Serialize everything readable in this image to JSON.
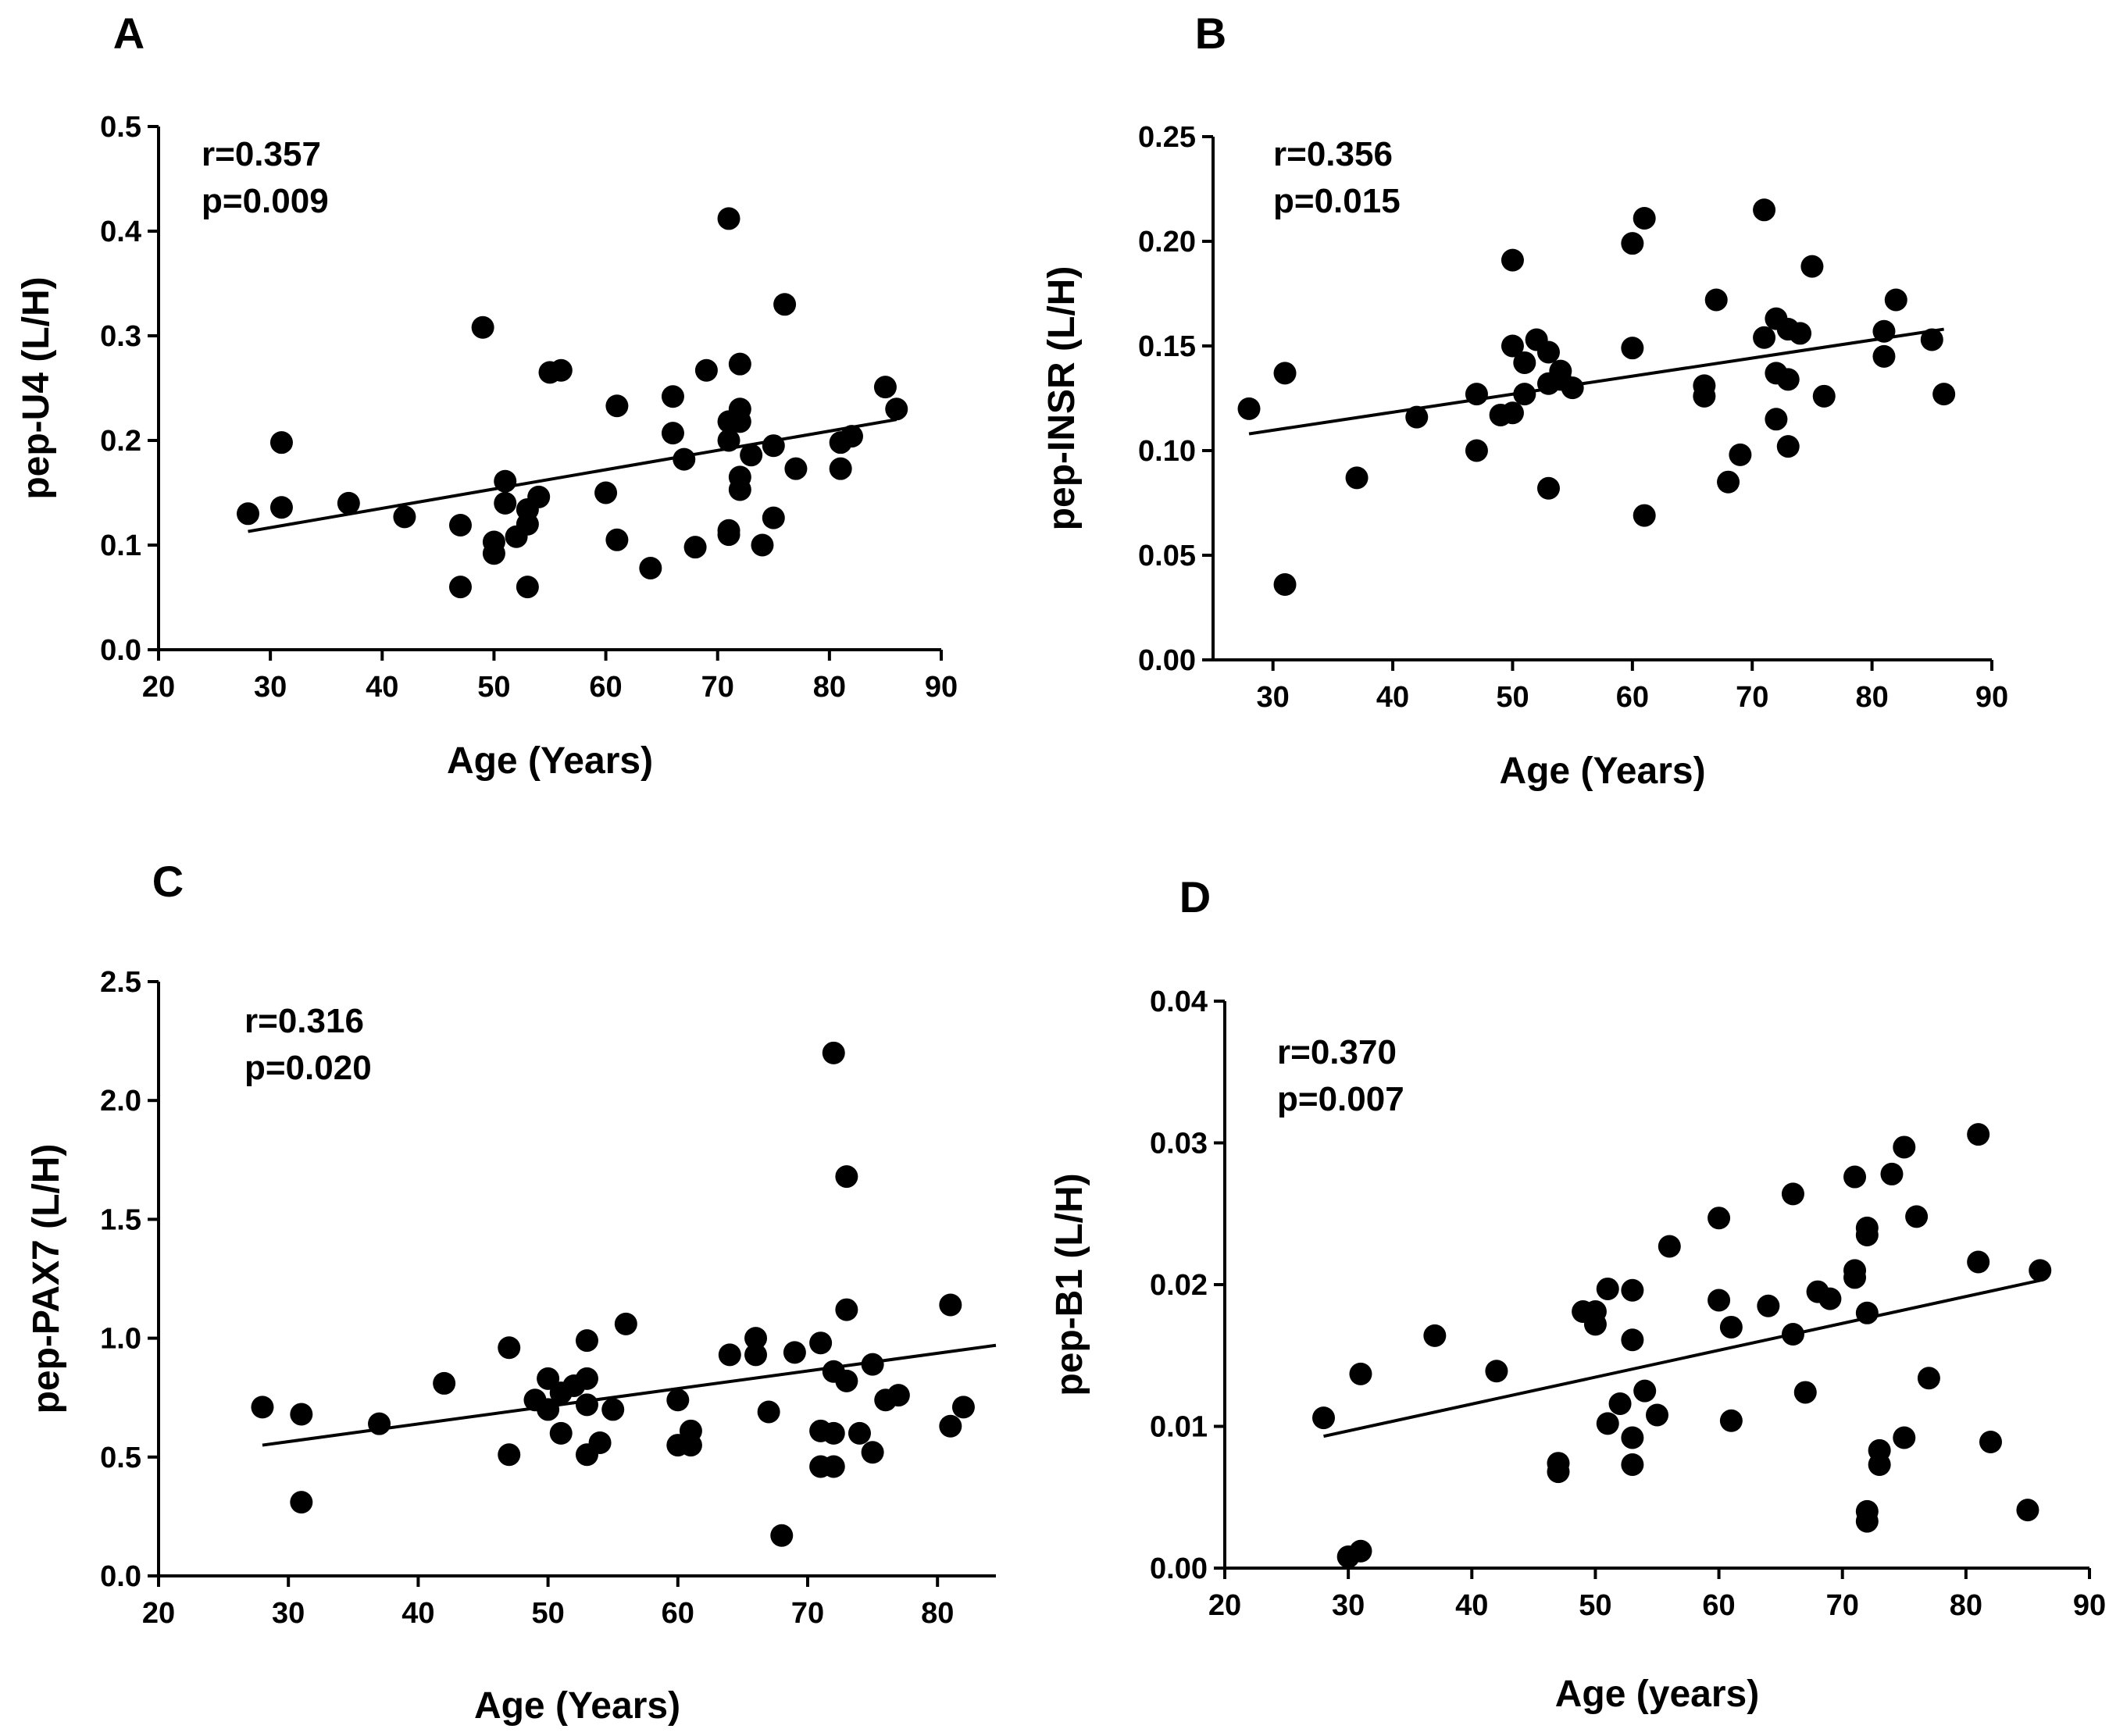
{
  "chart_data": [
    {
      "panel": "A",
      "type": "scatter",
      "r_label": "r=0.357",
      "p_label": "p=0.009",
      "xlabel": "Age (Years)",
      "ylabel": "pep-U4 (L/H)",
      "xlim": [
        20,
        90
      ],
      "ylim": [
        0.0,
        0.5
      ],
      "xticks": [
        20,
        30,
        40,
        50,
        60,
        70,
        80,
        90
      ],
      "yticks": [
        0.0,
        0.1,
        0.2,
        0.3,
        0.4,
        0.5
      ],
      "ytick_labels": [
        "0.0",
        "0.1",
        "0.2",
        "0.3",
        "0.4",
        "0.5"
      ],
      "fit_line": [
        [
          28,
          0.113
        ],
        [
          86,
          0.22
        ]
      ],
      "points": [
        [
          28,
          0.13
        ],
        [
          31,
          0.136
        ],
        [
          31,
          0.198
        ],
        [
          37,
          0.14
        ],
        [
          42,
          0.127
        ],
        [
          47,
          0.06
        ],
        [
          47,
          0.119
        ],
        [
          49,
          0.308
        ],
        [
          50,
          0.092
        ],
        [
          50,
          0.103
        ],
        [
          51,
          0.14
        ],
        [
          51,
          0.161
        ],
        [
          52,
          0.108
        ],
        [
          53,
          0.06
        ],
        [
          53,
          0.12
        ],
        [
          53,
          0.134
        ],
        [
          54,
          0.146
        ],
        [
          55,
          0.265
        ],
        [
          56,
          0.267
        ],
        [
          60,
          0.15
        ],
        [
          61,
          0.233
        ],
        [
          61,
          0.105
        ],
        [
          64,
          0.078
        ],
        [
          66,
          0.242
        ],
        [
          66,
          0.207
        ],
        [
          67,
          0.182
        ],
        [
          68,
          0.098
        ],
        [
          69,
          0.267
        ],
        [
          71,
          0.412
        ],
        [
          71,
          0.2
        ],
        [
          71,
          0.218
        ],
        [
          71,
          0.114
        ],
        [
          71,
          0.11
        ],
        [
          72,
          0.273
        ],
        [
          72,
          0.23
        ],
        [
          72,
          0.218
        ],
        [
          72,
          0.165
        ],
        [
          72,
          0.153
        ],
        [
          73,
          0.186
        ],
        [
          74,
          0.1
        ],
        [
          75,
          0.126
        ],
        [
          75,
          0.195
        ],
        [
          76,
          0.33
        ],
        [
          77,
          0.173
        ],
        [
          81,
          0.198
        ],
        [
          81,
          0.173
        ],
        [
          82,
          0.204
        ],
        [
          85,
          0.251
        ],
        [
          86,
          0.23
        ]
      ]
    },
    {
      "panel": "B",
      "type": "scatter",
      "r_label": "r=0.356",
      "p_label": "p=0.015",
      "xlabel": "Age (Years)",
      "ylabel": "pep-INSR (L/H)",
      "xlim": [
        25,
        90
      ],
      "ylim": [
        0.0,
        0.25
      ],
      "xticks": [
        30,
        40,
        50,
        60,
        70,
        80,
        90
      ],
      "yticks": [
        0.0,
        0.05,
        0.1,
        0.15,
        0.2,
        0.25
      ],
      "ytick_labels": [
        "0.00",
        "0.05",
        "0.10",
        "0.15",
        "0.20",
        "0.25"
      ],
      "fit_line": [
        [
          28,
          0.108
        ],
        [
          86,
          0.158
        ]
      ],
      "points": [
        [
          28,
          0.12
        ],
        [
          31,
          0.137
        ],
        [
          31,
          0.036
        ],
        [
          37,
          0.087
        ],
        [
          42,
          0.116
        ],
        [
          47,
          0.127
        ],
        [
          47,
          0.1
        ],
        [
          49,
          0.117
        ],
        [
          50,
          0.191
        ],
        [
          50,
          0.15
        ],
        [
          50,
          0.118
        ],
        [
          51,
          0.127
        ],
        [
          51,
          0.142
        ],
        [
          52,
          0.153
        ],
        [
          53,
          0.147
        ],
        [
          53,
          0.132
        ],
        [
          53,
          0.082
        ],
        [
          54,
          0.138
        ],
        [
          54,
          0.134
        ],
        [
          55,
          0.13
        ],
        [
          60,
          0.199
        ],
        [
          60,
          0.149
        ],
        [
          61,
          0.211
        ],
        [
          61,
          0.069
        ],
        [
          66,
          0.131
        ],
        [
          66,
          0.126
        ],
        [
          67,
          0.172
        ],
        [
          68,
          0.085
        ],
        [
          69,
          0.098
        ],
        [
          71,
          0.215
        ],
        [
          71,
          0.154
        ],
        [
          72,
          0.163
        ],
        [
          72,
          0.137
        ],
        [
          72,
          0.115
        ],
        [
          73,
          0.158
        ],
        [
          73,
          0.134
        ],
        [
          73,
          0.102
        ],
        [
          74,
          0.156
        ],
        [
          75,
          0.188
        ],
        [
          76,
          0.126
        ],
        [
          81,
          0.157
        ],
        [
          81,
          0.145
        ],
        [
          82,
          0.172
        ],
        [
          85,
          0.153
        ],
        [
          86,
          0.127
        ]
      ]
    },
    {
      "panel": "C",
      "type": "scatter",
      "r_label": "r=0.316",
      "p_label": "p=0.020",
      "xlabel": "Age (Years)",
      "ylabel": "pep-PAX7 (L/H)",
      "xlim": [
        20,
        84.5
      ],
      "ylim": [
        0.0,
        2.5
      ],
      "xticks": [
        20,
        30,
        40,
        50,
        60,
        70,
        80
      ],
      "yticks": [
        0.0,
        0.5,
        1.0,
        1.5,
        2.0,
        2.5
      ],
      "ytick_labels": [
        "0.0",
        "0.5",
        "1.0",
        "1.5",
        "2.0",
        "2.5"
      ],
      "fit_line": [
        [
          28,
          0.55
        ],
        [
          84.5,
          0.97
        ]
      ],
      "points": [
        [
          28,
          0.71
        ],
        [
          31,
          0.68
        ],
        [
          31,
          0.31
        ],
        [
          37,
          0.64
        ],
        [
          42,
          0.81
        ],
        [
          47,
          0.96
        ],
        [
          47,
          0.51
        ],
        [
          49,
          0.74
        ],
        [
          50,
          0.83
        ],
        [
          50,
          0.7
        ],
        [
          51,
          0.6
        ],
        [
          51,
          0.77
        ],
        [
          52,
          0.8
        ],
        [
          53,
          0.99
        ],
        [
          53,
          0.83
        ],
        [
          53,
          0.72
        ],
        [
          53,
          0.51
        ],
        [
          54,
          0.56
        ],
        [
          55,
          0.7
        ],
        [
          56,
          1.06
        ],
        [
          60,
          0.74
        ],
        [
          60,
          0.55
        ],
        [
          61,
          0.61
        ],
        [
          61,
          0.55
        ],
        [
          64,
          0.93
        ],
        [
          66,
          1.0
        ],
        [
          66,
          0.93
        ],
        [
          67,
          0.69
        ],
        [
          68,
          0.17
        ],
        [
          69,
          0.94
        ],
        [
          71,
          0.98
        ],
        [
          71,
          0.61
        ],
        [
          71,
          0.46
        ],
        [
          72,
          2.2
        ],
        [
          72,
          0.86
        ],
        [
          72,
          0.6
        ],
        [
          72,
          0.46
        ],
        [
          73,
          1.68
        ],
        [
          73,
          1.12
        ],
        [
          73,
          0.82
        ],
        [
          74,
          0.6
        ],
        [
          75,
          0.89
        ],
        [
          75,
          0.52
        ],
        [
          76,
          0.74
        ],
        [
          77,
          0.76
        ],
        [
          81,
          1.14
        ],
        [
          81,
          0.63
        ],
        [
          82,
          0.71
        ]
      ]
    },
    {
      "panel": "D",
      "type": "scatter",
      "r_label": "r=0.370",
      "p_label": "p=0.007",
      "xlabel": "Age (years)",
      "ylabel": "pep-B1 (L/H)",
      "xlim": [
        20,
        90
      ],
      "ylim": [
        0.0,
        0.04
      ],
      "xticks": [
        20,
        30,
        40,
        50,
        60,
        70,
        80,
        90
      ],
      "yticks": [
        0.0,
        0.01,
        0.02,
        0.03,
        0.04
      ],
      "ytick_labels": [
        "0.00",
        "0.01",
        "0.02",
        "0.03",
        "0.04"
      ],
      "fit_line": [
        [
          28,
          0.0093
        ],
        [
          86,
          0.0203
        ]
      ],
      "points": [
        [
          28,
          0.0106
        ],
        [
          30,
          0.0008
        ],
        [
          31,
          0.0012
        ],
        [
          31,
          0.0137
        ],
        [
          37,
          0.0164
        ],
        [
          42,
          0.0139
        ],
        [
          47,
          0.0068
        ],
        [
          47,
          0.0074
        ],
        [
          49,
          0.0181
        ],
        [
          50,
          0.0181
        ],
        [
          50,
          0.0172
        ],
        [
          51,
          0.0197
        ],
        [
          51,
          0.0102
        ],
        [
          52,
          0.0116
        ],
        [
          53,
          0.0196
        ],
        [
          53,
          0.0161
        ],
        [
          53,
          0.0092
        ],
        [
          53,
          0.0073
        ],
        [
          54,
          0.0125
        ],
        [
          55,
          0.0108
        ],
        [
          56,
          0.0227
        ],
        [
          60,
          0.0247
        ],
        [
          60,
          0.0189
        ],
        [
          61,
          0.017
        ],
        [
          61,
          0.0104
        ],
        [
          64,
          0.0185
        ],
        [
          66,
          0.0264
        ],
        [
          66,
          0.0165
        ],
        [
          67,
          0.0124
        ],
        [
          68,
          0.0195
        ],
        [
          69,
          0.019
        ],
        [
          71,
          0.0276
        ],
        [
          71,
          0.021
        ],
        [
          71,
          0.0205
        ],
        [
          72,
          0.024
        ],
        [
          72,
          0.0235
        ],
        [
          72,
          0.018
        ],
        [
          72,
          0.004
        ],
        [
          72,
          0.0033
        ],
        [
          73,
          0.0083
        ],
        [
          73,
          0.0073
        ],
        [
          74,
          0.0278
        ],
        [
          75,
          0.0297
        ],
        [
          75,
          0.0092
        ],
        [
          76,
          0.0248
        ],
        [
          77,
          0.0134
        ],
        [
          81,
          0.0306
        ],
        [
          81,
          0.0216
        ],
        [
          82,
          0.0089
        ],
        [
          85,
          0.0041
        ],
        [
          86,
          0.021
        ]
      ]
    }
  ]
}
